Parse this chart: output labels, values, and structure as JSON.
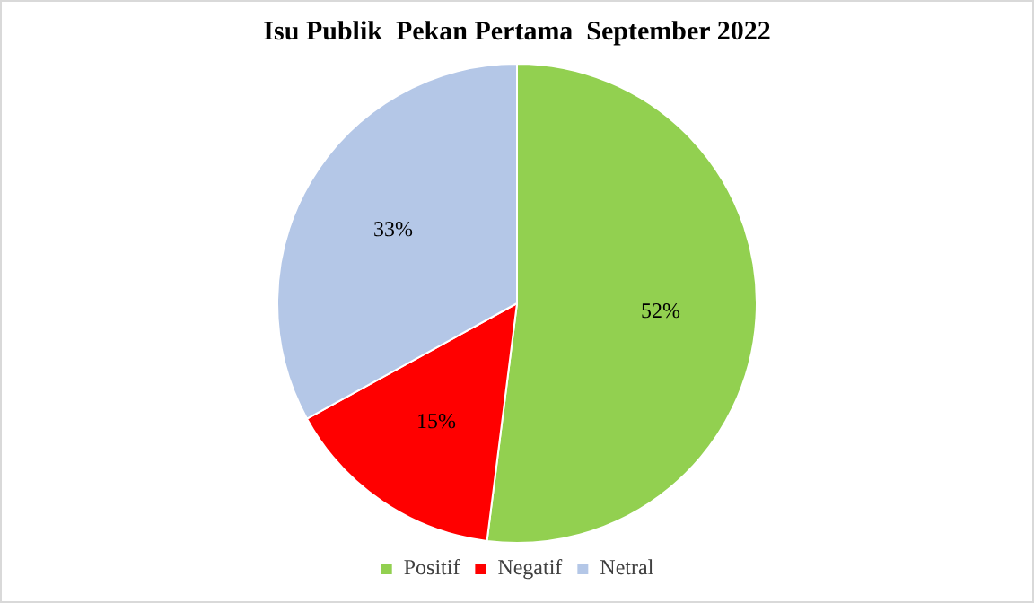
{
  "chart_data": {
    "type": "pie",
    "title": "Isu Publik  Pekan Pertama  September 2022",
    "categories": [
      "Positif",
      "Negatif",
      "Netral"
    ],
    "values": [
      52,
      15,
      33
    ],
    "colors": [
      "#92d050",
      "#ff0000",
      "#b4c7e7"
    ],
    "value_labels": [
      "52%",
      "15%",
      "33%"
    ],
    "legend": "bottom"
  }
}
